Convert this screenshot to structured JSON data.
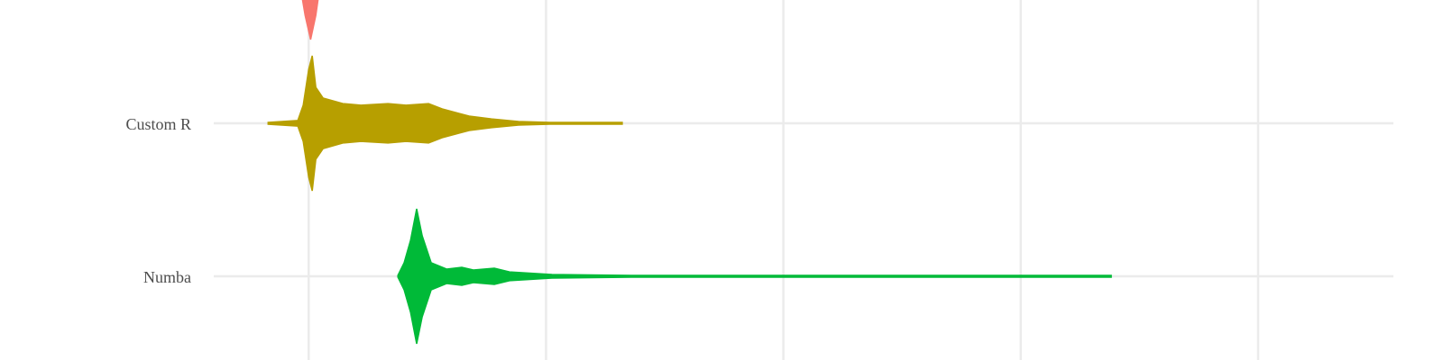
{
  "chart_data": {
    "type": "violin",
    "categories": [
      null,
      "Custom R",
      "Numba"
    ],
    "xlim": [
      -0.4,
      4.57
    ],
    "xticks": [
      0,
      1,
      2,
      3,
      4
    ],
    "grid": true,
    "series": [
      {
        "color": "#F8766D",
        "x": [
          -0.034,
          -0.015,
          0.008,
          0.03,
          0.046
        ],
        "values": [
          0.118,
          0.294,
          0.453,
          0.294,
          0.118
        ]
      },
      {
        "color": "#B79F00",
        "x": [
          -0.171,
          -0.046,
          -0.023,
          0,
          0.015,
          0.03,
          0.061,
          0.144,
          0.22,
          0.334,
          0.41,
          0.505,
          0.562,
          0.676,
          0.77,
          0.884,
          1.017,
          1.321
        ],
        "values": [
          0.006,
          0.018,
          0.118,
          0.353,
          0.441,
          0.235,
          0.165,
          0.129,
          0.118,
          0.129,
          0.118,
          0.129,
          0.094,
          0.047,
          0.029,
          0.012,
          0.006,
          0.006
        ]
      },
      {
        "color": "#00BA38",
        "x": [
          0.376,
          0.402,
          0.429,
          0.455,
          0.478,
          0.516,
          0.581,
          0.645,
          0.694,
          0.782,
          0.846,
          1.025,
          1.359,
          3.381
        ],
        "values": [
          0.006,
          0.088,
          0.235,
          0.441,
          0.265,
          0.088,
          0.047,
          0.059,
          0.041,
          0.053,
          0.029,
          0.012,
          0.006,
          0.006
        ]
      }
    ]
  }
}
